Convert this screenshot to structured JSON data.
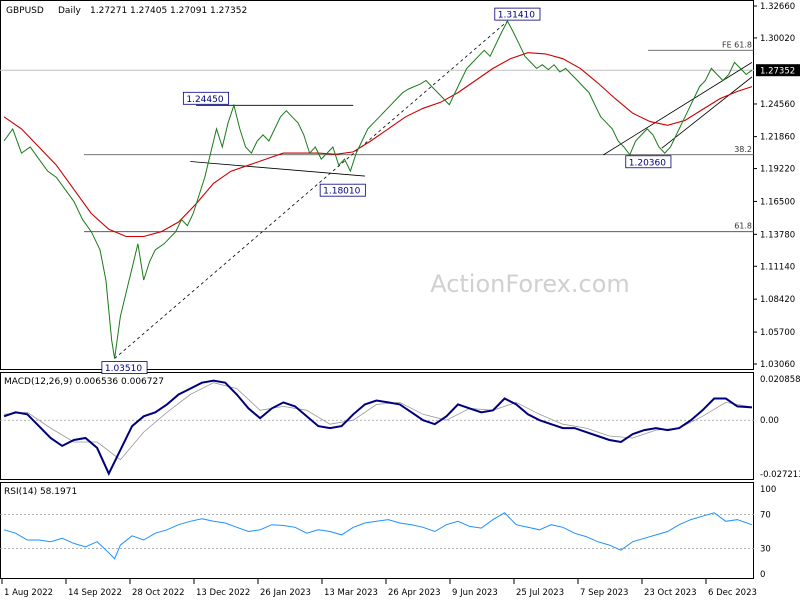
{
  "chart_data": {
    "type": "line",
    "instrument": "GBPUSD",
    "timeframe": "Daily",
    "ohlc": {
      "open": "1.27271",
      "high": "1.27405",
      "low": "1.27091",
      "close": "1.27352"
    },
    "watermark": "ActionForex.com",
    "x_labels": [
      "1 Aug 2022",
      "14 Sep 2022",
      "28 Oct 2022",
      "13 Dec 2022",
      "26 Jan 2023",
      "13 Mar 2023",
      "26 Apr 2023",
      "9 Jun 2023",
      "25 Jul 2023",
      "7 Sep 2023",
      "23 Oct 2023",
      "6 Dec 2023"
    ],
    "price_panel": {
      "ylim": [
        1.0306,
        1.3266
      ],
      "y_ticks": [
        "1.32660",
        "1.30020",
        "1.27352",
        "1.24560",
        "1.21860",
        "1.19220",
        "1.16500",
        "1.13780",
        "1.11140",
        "1.08420",
        "1.05700",
        "1.03060"
      ],
      "current_price": "1.27352",
      "price_series": [
        [
          0,
          1.215
        ],
        [
          3,
          1.225
        ],
        [
          6,
          1.205
        ],
        [
          9,
          1.21
        ],
        [
          12,
          1.2
        ],
        [
          15,
          1.19
        ],
        [
          18,
          1.185
        ],
        [
          21,
          1.175
        ],
        [
          24,
          1.165
        ],
        [
          27,
          1.15
        ],
        [
          30,
          1.14
        ],
        [
          33,
          1.125
        ],
        [
          35,
          1.1
        ],
        [
          37,
          1.05
        ],
        [
          38,
          1.0351
        ],
        [
          40,
          1.07
        ],
        [
          42,
          1.09
        ],
        [
          44,
          1.11
        ],
        [
          46,
          1.13
        ],
        [
          48,
          1.1
        ],
        [
          50,
          1.115
        ],
        [
          52,
          1.125
        ],
        [
          55,
          1.13
        ],
        [
          57,
          1.135
        ],
        [
          59,
          1.14
        ],
        [
          61,
          1.15
        ],
        [
          63,
          1.145
        ],
        [
          65,
          1.155
        ],
        [
          67,
          1.17
        ],
        [
          69,
          1.185
        ],
        [
          71,
          1.205
        ],
        [
          73,
          1.225
        ],
        [
          75,
          1.21
        ],
        [
          77,
          1.23
        ],
        [
          79,
          1.2445
        ],
        [
          81,
          1.225
        ],
        [
          83,
          1.21
        ],
        [
          85,
          1.205
        ],
        [
          87,
          1.215
        ],
        [
          89,
          1.22
        ],
        [
          91,
          1.215
        ],
        [
          93,
          1.225
        ],
        [
          95,
          1.235
        ],
        [
          97,
          1.24
        ],
        [
          99,
          1.235
        ],
        [
          101,
          1.23
        ],
        [
          103,
          1.22
        ],
        [
          105,
          1.205
        ],
        [
          107,
          1.21
        ],
        [
          109,
          1.2
        ],
        [
          111,
          1.205
        ],
        [
          113,
          1.21
        ],
        [
          115,
          1.195
        ],
        [
          117,
          1.2
        ],
        [
          119,
          1.19
        ],
        [
          121,
          1.205
        ],
        [
          123,
          1.215
        ],
        [
          125,
          1.225
        ],
        [
          127,
          1.23
        ],
        [
          129,
          1.235
        ],
        [
          131,
          1.24
        ],
        [
          133,
          1.245
        ],
        [
          135,
          1.25
        ],
        [
          137,
          1.255
        ],
        [
          139,
          1.258
        ],
        [
          141,
          1.26
        ],
        [
          143,
          1.262
        ],
        [
          145,
          1.265
        ],
        [
          147,
          1.26
        ],
        [
          149,
          1.255
        ],
        [
          151,
          1.25
        ],
        [
          153,
          1.245
        ],
        [
          155,
          1.255
        ],
        [
          157,
          1.265
        ],
        [
          159,
          1.275
        ],
        [
          161,
          1.28
        ],
        [
          163,
          1.285
        ],
        [
          165,
          1.29
        ],
        [
          167,
          1.285
        ],
        [
          169,
          1.295
        ],
        [
          171,
          1.305
        ],
        [
          173,
          1.3141
        ],
        [
          175,
          1.305
        ],
        [
          177,
          1.295
        ],
        [
          179,
          1.285
        ],
        [
          181,
          1.28
        ],
        [
          183,
          1.275
        ],
        [
          185,
          1.278
        ],
        [
          187,
          1.274
        ],
        [
          189,
          1.278
        ],
        [
          191,
          1.272
        ],
        [
          193,
          1.275
        ],
        [
          195,
          1.27
        ],
        [
          197,
          1.265
        ],
        [
          199,
          1.26
        ],
        [
          201,
          1.255
        ],
        [
          203,
          1.245
        ],
        [
          205,
          1.235
        ],
        [
          207,
          1.23
        ],
        [
          209,
          1.225
        ],
        [
          211,
          1.215
        ],
        [
          213,
          1.21
        ],
        [
          215,
          1.2036
        ],
        [
          217,
          1.215
        ],
        [
          219,
          1.22
        ],
        [
          221,
          1.225
        ],
        [
          223,
          1.22
        ],
        [
          225,
          1.21
        ],
        [
          227,
          1.205
        ],
        [
          229,
          1.21
        ],
        [
          231,
          1.22
        ],
        [
          233,
          1.23
        ],
        [
          235,
          1.24
        ],
        [
          237,
          1.25
        ],
        [
          239,
          1.26
        ],
        [
          241,
          1.265
        ],
        [
          243,
          1.275
        ],
        [
          245,
          1.27
        ],
        [
          247,
          1.265
        ],
        [
          249,
          1.27
        ],
        [
          251,
          1.28
        ],
        [
          253,
          1.275
        ],
        [
          255,
          1.27
        ],
        [
          257,
          1.2735
        ]
      ],
      "ma_series": [
        [
          0,
          1.235
        ],
        [
          6,
          1.225
        ],
        [
          12,
          1.21
        ],
        [
          18,
          1.195
        ],
        [
          24,
          1.175
        ],
        [
          30,
          1.155
        ],
        [
          36,
          1.142
        ],
        [
          42,
          1.136
        ],
        [
          48,
          1.136
        ],
        [
          54,
          1.14
        ],
        [
          60,
          1.148
        ],
        [
          66,
          1.163
        ],
        [
          72,
          1.18
        ],
        [
          78,
          1.19
        ],
        [
          84,
          1.195
        ],
        [
          90,
          1.2
        ],
        [
          96,
          1.205
        ],
        [
          102,
          1.205
        ],
        [
          108,
          1.205
        ],
        [
          114,
          1.204
        ],
        [
          120,
          1.206
        ],
        [
          126,
          1.215
        ],
        [
          132,
          1.225
        ],
        [
          138,
          1.235
        ],
        [
          144,
          1.242
        ],
        [
          150,
          1.247
        ],
        [
          156,
          1.255
        ],
        [
          162,
          1.265
        ],
        [
          168,
          1.275
        ],
        [
          174,
          1.283
        ],
        [
          180,
          1.288
        ],
        [
          186,
          1.287
        ],
        [
          192,
          1.283
        ],
        [
          198,
          1.275
        ],
        [
          204,
          1.263
        ],
        [
          210,
          1.25
        ],
        [
          216,
          1.238
        ],
        [
          222,
          1.231
        ],
        [
          228,
          1.228
        ],
        [
          234,
          1.232
        ],
        [
          240,
          1.241
        ],
        [
          246,
          1.25
        ],
        [
          252,
          1.256
        ],
        [
          257,
          1.26
        ]
      ],
      "trendline_series": [
        [
          [
            38,
            1.0351
          ],
          [
            173,
            1.3141
          ]
        ],
        [
          [
            66,
            1.2445
          ],
          [
            120,
            1.2445
          ]
        ],
        [
          [
            64,
            1.198
          ],
          [
            124,
            1.186
          ]
        ],
        [
          [
            206,
            1.2036
          ],
          [
            257,
            1.28
          ]
        ],
        [
          [
            226,
            1.209
          ],
          [
            257,
            1.268
          ]
        ]
      ],
      "horizontal_levels": [
        {
          "value": 1.29,
          "label": "FE 61.8"
        },
        {
          "value": 1.2036,
          "label": "38.2"
        },
        {
          "value": 1.14,
          "label": "61.8"
        }
      ],
      "annotations": [
        {
          "text": "1.31410",
          "x": 170,
          "y": 1.3141
        },
        {
          "text": "1.24450",
          "x": 63,
          "y": 1.2445
        },
        {
          "text": "1.18010",
          "x": 110,
          "y": 1.1801
        },
        {
          "text": "1.20360",
          "x": 215,
          "y": 1.2036
        },
        {
          "text": "1.03510",
          "x": 35,
          "y": 1.0351
        }
      ]
    },
    "macd_panel": {
      "title": "MACD(12,26,9) 0.006536 0.006727",
      "ylim": [
        -0.027213,
        0.020858
      ],
      "y_ticks": [
        "0.020858",
        "0.00",
        "-0.027213"
      ],
      "macd_series": [
        [
          0,
          0.002
        ],
        [
          4,
          0.004
        ],
        [
          8,
          0.003
        ],
        [
          12,
          -0.003
        ],
        [
          16,
          -0.009
        ],
        [
          20,
          -0.013
        ],
        [
          24,
          -0.01
        ],
        [
          28,
          -0.009
        ],
        [
          32,
          -0.014
        ],
        [
          36,
          -0.027
        ],
        [
          40,
          -0.015
        ],
        [
          44,
          -0.003
        ],
        [
          48,
          0.002
        ],
        [
          52,
          0.004
        ],
        [
          56,
          0.008
        ],
        [
          60,
          0.013
        ],
        [
          64,
          0.016
        ],
        [
          68,
          0.019
        ],
        [
          72,
          0.02
        ],
        [
          76,
          0.019
        ],
        [
          80,
          0.013
        ],
        [
          84,
          0.006
        ],
        [
          88,
          0.001
        ],
        [
          92,
          0.006
        ],
        [
          96,
          0.009
        ],
        [
          100,
          0.007
        ],
        [
          104,
          0.002
        ],
        [
          108,
          -0.003
        ],
        [
          112,
          -0.004
        ],
        [
          116,
          -0.003
        ],
        [
          120,
          0.003
        ],
        [
          124,
          0.008
        ],
        [
          128,
          0.01
        ],
        [
          132,
          0.009
        ],
        [
          136,
          0.008
        ],
        [
          140,
          0.004
        ],
        [
          144,
          0.0
        ],
        [
          148,
          -0.002
        ],
        [
          152,
          0.002
        ],
        [
          156,
          0.008
        ],
        [
          160,
          0.006
        ],
        [
          164,
          0.004
        ],
        [
          168,
          0.005
        ],
        [
          172,
          0.011
        ],
        [
          176,
          0.008
        ],
        [
          180,
          0.003
        ],
        [
          184,
          0.0
        ],
        [
          188,
          -0.002
        ],
        [
          192,
          -0.004
        ],
        [
          196,
          -0.004
        ],
        [
          200,
          -0.006
        ],
        [
          204,
          -0.008
        ],
        [
          208,
          -0.01
        ],
        [
          212,
          -0.011
        ],
        [
          216,
          -0.007
        ],
        [
          220,
          -0.005
        ],
        [
          224,
          -0.004
        ],
        [
          228,
          -0.005
        ],
        [
          232,
          -0.004
        ],
        [
          236,
          0.0
        ],
        [
          240,
          0.005
        ],
        [
          244,
          0.011
        ],
        [
          248,
          0.011
        ],
        [
          252,
          0.007
        ],
        [
          257,
          0.0065
        ]
      ],
      "signal_series": [
        [
          0,
          0.003
        ],
        [
          8,
          0.004
        ],
        [
          16,
          -0.004
        ],
        [
          24,
          -0.011
        ],
        [
          32,
          -0.011
        ],
        [
          40,
          -0.02
        ],
        [
          48,
          -0.006
        ],
        [
          56,
          0.004
        ],
        [
          64,
          0.013
        ],
        [
          72,
          0.019
        ],
        [
          80,
          0.016
        ],
        [
          88,
          0.005
        ],
        [
          96,
          0.007
        ],
        [
          104,
          0.005
        ],
        [
          112,
          -0.002
        ],
        [
          120,
          0.0
        ],
        [
          128,
          0.008
        ],
        [
          136,
          0.009
        ],
        [
          144,
          0.003
        ],
        [
          152,
          0.0
        ],
        [
          160,
          0.006
        ],
        [
          168,
          0.005
        ],
        [
          176,
          0.009
        ],
        [
          184,
          0.003
        ],
        [
          192,
          -0.002
        ],
        [
          200,
          -0.004
        ],
        [
          208,
          -0.008
        ],
        [
          216,
          -0.009
        ],
        [
          224,
          -0.005
        ],
        [
          232,
          -0.004
        ],
        [
          240,
          0.002
        ],
        [
          248,
          0.009
        ],
        [
          257,
          0.0067
        ]
      ]
    },
    "rsi_panel": {
      "title": "RSI(14) 58.1971",
      "ylim": [
        0,
        100
      ],
      "y_ticks": [
        "100",
        "70",
        "30",
        "0"
      ],
      "rsi_series": [
        [
          0,
          52
        ],
        [
          4,
          48
        ],
        [
          8,
          40
        ],
        [
          12,
          40
        ],
        [
          16,
          38
        ],
        [
          20,
          42
        ],
        [
          24,
          36
        ],
        [
          28,
          32
        ],
        [
          32,
          38
        ],
        [
          36,
          25
        ],
        [
          38,
          18
        ],
        [
          40,
          34
        ],
        [
          44,
          45
        ],
        [
          48,
          40
        ],
        [
          52,
          48
        ],
        [
          56,
          52
        ],
        [
          60,
          58
        ],
        [
          64,
          62
        ],
        [
          68,
          65
        ],
        [
          72,
          62
        ],
        [
          76,
          60
        ],
        [
          80,
          55
        ],
        [
          84,
          50
        ],
        [
          88,
          52
        ],
        [
          92,
          58
        ],
        [
          96,
          57
        ],
        [
          100,
          55
        ],
        [
          104,
          48
        ],
        [
          108,
          52
        ],
        [
          112,
          50
        ],
        [
          116,
          46
        ],
        [
          120,
          55
        ],
        [
          124,
          60
        ],
        [
          128,
          62
        ],
        [
          132,
          64
        ],
        [
          136,
          60
        ],
        [
          140,
          58
        ],
        [
          144,
          55
        ],
        [
          148,
          50
        ],
        [
          152,
          58
        ],
        [
          156,
          62
        ],
        [
          160,
          56
        ],
        [
          164,
          54
        ],
        [
          168,
          64
        ],
        [
          172,
          72
        ],
        [
          176,
          58
        ],
        [
          180,
          55
        ],
        [
          184,
          52
        ],
        [
          188,
          58
        ],
        [
          192,
          55
        ],
        [
          196,
          48
        ],
        [
          200,
          44
        ],
        [
          204,
          38
        ],
        [
          208,
          34
        ],
        [
          212,
          28
        ],
        [
          216,
          38
        ],
        [
          220,
          42
        ],
        [
          224,
          46
        ],
        [
          228,
          50
        ],
        [
          232,
          58
        ],
        [
          236,
          64
        ],
        [
          240,
          68
        ],
        [
          244,
          72
        ],
        [
          248,
          62
        ],
        [
          252,
          64
        ],
        [
          257,
          58
        ]
      ]
    }
  }
}
